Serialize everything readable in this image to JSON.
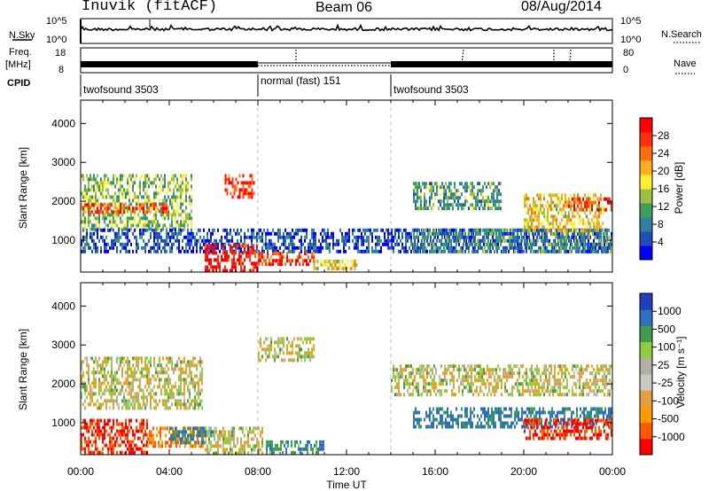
{
  "header": {
    "station": "Inuvik (fitACF)",
    "beam": "Beam 06",
    "date": "08/Aug/2014"
  },
  "noise_panel": {
    "left_label": "N.Sky",
    "left_ticks": [
      "10^5",
      "10^0"
    ],
    "right_ticks": [
      "10^5",
      "10^0"
    ],
    "right_label": "N.Search"
  },
  "freq_panel": {
    "left_label_line1": "Freq.",
    "left_label_line2": "[MHz]",
    "left_ticks": [
      "18",
      "8"
    ],
    "right_ticks": [
      "80",
      "0"
    ],
    "right_label": "Nave"
  },
  "cpid_panel": {
    "label": "CPID",
    "segments": [
      {
        "name": "twofsound 3503",
        "start_h": 0,
        "end_h": 8
      },
      {
        "name": "normal (fast) 151",
        "start_h": 8,
        "end_h": 14
      },
      {
        "name": "twofsound 3503",
        "start_h": 14,
        "end_h": 24
      }
    ]
  },
  "x_axis": {
    "label": "Time UT",
    "ticks": [
      "00:00",
      "04:00",
      "08:00",
      "12:00",
      "16:00",
      "20:00",
      "00:00"
    ],
    "range_hours": [
      0,
      24
    ]
  },
  "chart_data": [
    {
      "type": "heatmap",
      "panel": "power",
      "ylabel": "Slant Range [km]",
      "yticks": [
        "1000",
        "2000",
        "3000",
        "4000"
      ],
      "ylim_km": [
        180,
        4600
      ],
      "xlim_hours": [
        0,
        24
      ],
      "colorbar": {
        "label": "Power [dB]",
        "ticks": [
          "28",
          "24",
          "20",
          "16",
          "12",
          "8",
          "4"
        ],
        "colors": [
          "#0000ff",
          "#1f4fb0",
          "#2f7f9f",
          "#3f9f5f",
          "#9fbf3f",
          "#ffef2f",
          "#ffaf1f",
          "#ff6f0f",
          "#ff2f0f",
          "#ff0000"
        ]
      },
      "regions": [
        {
          "t0": 0.0,
          "t1": 5.0,
          "r0": 1300,
          "r1": 2700,
          "value": 14
        },
        {
          "t0": 0.0,
          "t1": 4.0,
          "r0": 1700,
          "r1": 1950,
          "value": 24
        },
        {
          "t0": 0.0,
          "t1": 24.0,
          "r0": 700,
          "r1": 1300,
          "value": 6
        },
        {
          "t0": 5.6,
          "t1": 8.0,
          "r0": 200,
          "r1": 900,
          "value": 29
        },
        {
          "t0": 8.0,
          "t1": 10.5,
          "r0": 350,
          "r1": 700,
          "value": 26
        },
        {
          "t0": 10.5,
          "t1": 12.5,
          "r0": 250,
          "r1": 500,
          "value": 18
        },
        {
          "t0": 6.5,
          "t1": 7.8,
          "r0": 2100,
          "r1": 2700,
          "value": 26
        },
        {
          "t0": 15.0,
          "t1": 19.0,
          "r0": 1800,
          "r1": 2500,
          "value": 12
        },
        {
          "t0": 15.0,
          "t1": 24.0,
          "r0": 700,
          "r1": 1300,
          "value": 10
        },
        {
          "t0": 20.0,
          "t1": 23.6,
          "r0": 1200,
          "r1": 2200,
          "value": 18
        },
        {
          "t0": 22.0,
          "t1": 24.0,
          "r0": 1800,
          "r1": 2100,
          "value": 26
        }
      ]
    },
    {
      "type": "heatmap",
      "panel": "velocity",
      "ylabel": "Slant Range [km]",
      "yticks": [
        "1000",
        "2000",
        "3000",
        "4000"
      ],
      "ylim_km": [
        180,
        4600
      ],
      "xlim_hours": [
        0,
        24
      ],
      "colorbar": {
        "label": "Velocity [m s⁻¹]",
        "ticks": [
          "1000",
          "500",
          "100",
          "25",
          "-25",
          "-100",
          "-500",
          "-1000"
        ],
        "colors": [
          "#ff0000",
          "#ff5a00",
          "#ff9a00",
          "#e0a040",
          "#c8c8c0",
          "#b0b0a8",
          "#8fcf3f",
          "#3f9f4f",
          "#2f6fbf",
          "#1f3fbf"
        ]
      },
      "regions": [
        {
          "t0": 0.0,
          "t1": 5.5,
          "r0": 1400,
          "r1": 2700,
          "value": 0
        },
        {
          "t0": 0.0,
          "t1": 3.0,
          "r0": 200,
          "r1": 1100,
          "value": -300
        },
        {
          "t0": 3.0,
          "t1": 5.5,
          "r0": 400,
          "r1": 900,
          "value": -80
        },
        {
          "t0": 4.0,
          "t1": 6.0,
          "r0": 500,
          "r1": 900,
          "value": 80
        },
        {
          "t0": 5.6,
          "t1": 8.2,
          "r0": 200,
          "r1": 900,
          "value": 0
        },
        {
          "t0": 8.2,
          "t1": 11.0,
          "r0": 200,
          "r1": 550,
          "value": 60
        },
        {
          "t0": 8.0,
          "t1": 10.5,
          "r0": 2600,
          "r1": 3200,
          "value": 0
        },
        {
          "t0": 14.0,
          "t1": 24.0,
          "r0": 1700,
          "r1": 2500,
          "value": 0
        },
        {
          "t0": 15.0,
          "t1": 24.0,
          "r0": 900,
          "r1": 1400,
          "value": 90
        },
        {
          "t0": 20.0,
          "t1": 24.0,
          "r0": 600,
          "r1": 1100,
          "value": -300
        }
      ]
    }
  ]
}
